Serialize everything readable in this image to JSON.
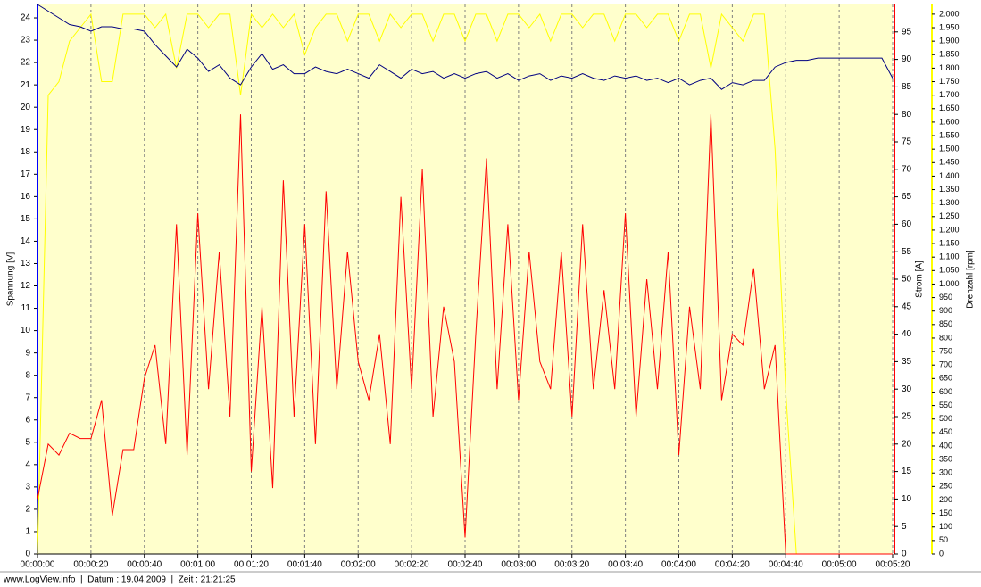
{
  "chart_data": {
    "type": "line",
    "ylabel": "Spannung [V]",
    "y2label": "Strom [A]",
    "y3label": "Drehzahl [rpm]",
    "footer": "www.LogView.info  |  Datum : 19.04.2009  |  Zeit : 21:21:25",
    "x": [
      0,
      4,
      8,
      12,
      16,
      20,
      24,
      28,
      32,
      36,
      40,
      44,
      48,
      52,
      56,
      60,
      64,
      68,
      72,
      76,
      80,
      84,
      88,
      92,
      96,
      100,
      104,
      108,
      112,
      116,
      120,
      124,
      128,
      132,
      136,
      140,
      144,
      148,
      152,
      156,
      160,
      164,
      168,
      172,
      176,
      180,
      184,
      188,
      192,
      196,
      200,
      204,
      208,
      212,
      216,
      220,
      224,
      228,
      232,
      236,
      240,
      244,
      248,
      252,
      256,
      260,
      264,
      268,
      272,
      276,
      280,
      284,
      288,
      292,
      296,
      300,
      304,
      308,
      312,
      316,
      320
    ],
    "xlim": [
      0,
      320
    ],
    "xticks": [
      {
        "value": 0,
        "label": "00:00:00"
      },
      {
        "value": 20,
        "label": "00:00:20"
      },
      {
        "value": 40,
        "label": "00:00:40"
      },
      {
        "value": 60,
        "label": "00:01:00"
      },
      {
        "value": 80,
        "label": "00:01:20"
      },
      {
        "value": 100,
        "label": "00:01:40"
      },
      {
        "value": 120,
        "label": "00:02:00"
      },
      {
        "value": 140,
        "label": "00:02:20"
      },
      {
        "value": 160,
        "label": "00:02:40"
      },
      {
        "value": 180,
        "label": "00:03:00"
      },
      {
        "value": 200,
        "label": "00:03:20"
      },
      {
        "value": 220,
        "label": "00:03:40"
      },
      {
        "value": 240,
        "label": "00:04:00"
      },
      {
        "value": 260,
        "label": "00:04:20"
      },
      {
        "value": 280,
        "label": "00:04:40"
      },
      {
        "value": 300,
        "label": "00:05:00"
      },
      {
        "value": 320,
        "label": "00:05:20"
      }
    ],
    "ylim": [
      0,
      24.6
    ],
    "yticks": [
      0,
      1,
      2,
      3,
      4,
      5,
      6,
      7,
      8,
      9,
      10,
      11,
      12,
      13,
      14,
      15,
      16,
      17,
      18,
      19,
      20,
      21,
      22,
      23,
      24
    ],
    "y2lim": [
      0,
      100
    ],
    "y2ticks": [
      0,
      5,
      10,
      15,
      20,
      25,
      30,
      35,
      40,
      45,
      50,
      55,
      60,
      65,
      70,
      75,
      80,
      85,
      90,
      95
    ],
    "y3lim": [
      0,
      2036
    ],
    "y3ticks": [
      0,
      50,
      100,
      150,
      200,
      250,
      300,
      350,
      400,
      450,
      500,
      550,
      600,
      650,
      700,
      750,
      800,
      850,
      900,
      950,
      {
        "value": 1000,
        "label": "1.000"
      },
      {
        "value": 1050,
        "label": "1.050"
      },
      {
        "value": 1100,
        "label": "1.100"
      },
      {
        "value": 1150,
        "label": "1.150"
      },
      {
        "value": 1200,
        "label": "1.200"
      },
      {
        "value": 1250,
        "label": "1.250"
      },
      {
        "value": 1300,
        "label": "1.300"
      },
      {
        "value": 1350,
        "label": "1.350"
      },
      {
        "value": 1400,
        "label": "1.400"
      },
      {
        "value": 1450,
        "label": "1.450"
      },
      {
        "value": 1500,
        "label": "1.500"
      },
      {
        "value": 1550,
        "label": "1.550"
      },
      {
        "value": 1600,
        "label": "1.600"
      },
      {
        "value": 1650,
        "label": "1.650"
      },
      {
        "value": 1700,
        "label": "1.700"
      },
      {
        "value": 1750,
        "label": "1.750"
      },
      {
        "value": 1800,
        "label": "1.800"
      },
      {
        "value": 1850,
        "label": "1.850"
      },
      {
        "value": 1900,
        "label": "1.900"
      },
      {
        "value": 1950,
        "label": "1.950"
      },
      {
        "value": 2000,
        "label": "2.000"
      }
    ],
    "grid": true,
    "series": [
      {
        "axis": "y3",
        "color": "#ffff00",
        "values": [
          0,
          1700,
          1750,
          1900,
          1950,
          2000,
          1750,
          1750,
          2000,
          2000,
          2000,
          1950,
          2000,
          1800,
          2000,
          2000,
          1950,
          2000,
          2000,
          1700,
          2000,
          1950,
          2000,
          1950,
          2000,
          1850,
          1950,
          2000,
          2000,
          1900,
          2000,
          2000,
          1900,
          2000,
          1950,
          2000,
          2000,
          1900,
          2000,
          2000,
          1900,
          2000,
          2000,
          1900,
          2000,
          2000,
          1950,
          2000,
          1900,
          2000,
          2000,
          1950,
          2000,
          2000,
          1900,
          2000,
          2000,
          1950,
          2000,
          2000,
          1900,
          2000,
          2000,
          1800,
          2000,
          1950,
          1900,
          2000,
          2000,
          1500,
          600,
          0,
          0,
          0,
          0,
          0,
          0,
          0,
          0,
          0,
          0
        ]
      },
      {
        "axis": "y2",
        "color": "#ff0000",
        "values": [
          10,
          20,
          18,
          22,
          21,
          21,
          28,
          7,
          19,
          19,
          32,
          38,
          20,
          60,
          18,
          62,
          30,
          55,
          25,
          80,
          15,
          45,
          12,
          68,
          25,
          60,
          20,
          66,
          30,
          55,
          35,
          28,
          40,
          20,
          65,
          30,
          70,
          25,
          45,
          35,
          3,
          40,
          72,
          30,
          60,
          28,
          55,
          35,
          30,
          55,
          25,
          60,
          30,
          48,
          30,
          62,
          25,
          50,
          30,
          55,
          18,
          45,
          30,
          80,
          28,
          40,
          38,
          52,
          30,
          38,
          0,
          0,
          0,
          0,
          0,
          0,
          0,
          0,
          0,
          0,
          0
        ]
      },
      {
        "axis": "y",
        "color": "#000080",
        "values": [
          24.6,
          24.3,
          24,
          23.7,
          23.6,
          23.4,
          23.6,
          23.6,
          23.5,
          23.5,
          23.4,
          22.8,
          22.3,
          21.8,
          22.6,
          22.2,
          21.6,
          21.9,
          21.3,
          21,
          21.8,
          22.4,
          21.7,
          21.9,
          21.5,
          21.5,
          21.8,
          21.6,
          21.5,
          21.7,
          21.5,
          21.3,
          21.9,
          21.6,
          21.3,
          21.7,
          21.5,
          21.6,
          21.3,
          21.5,
          21.3,
          21.5,
          21.6,
          21.3,
          21.5,
          21.2,
          21.4,
          21.5,
          21.2,
          21.4,
          21.3,
          21.5,
          21.3,
          21.2,
          21.4,
          21.3,
          21.4,
          21.2,
          21.3,
          21.1,
          21.3,
          21,
          21.2,
          21.3,
          20.8,
          21.1,
          21,
          21.2,
          21.2,
          21.8,
          22,
          22.1,
          22.1,
          22.2,
          22.2,
          22.2,
          22.2,
          22.2,
          22.2,
          22.2,
          21.3
        ]
      }
    ]
  }
}
